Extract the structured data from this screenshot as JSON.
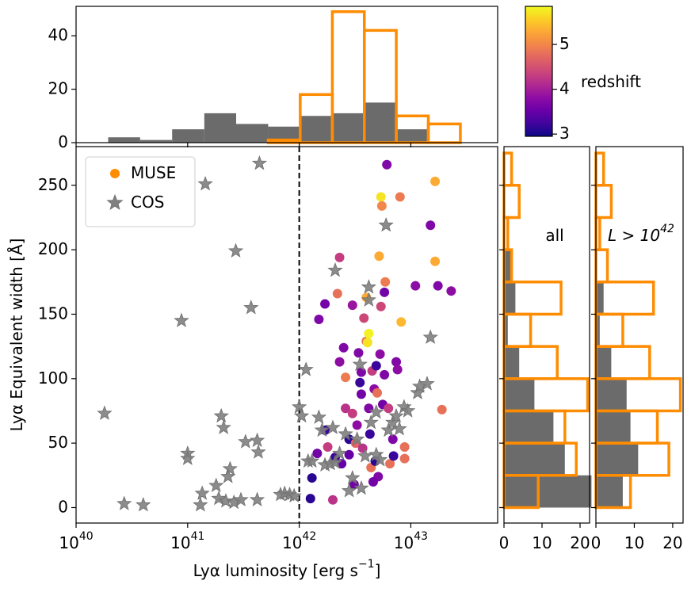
{
  "chart_data": [
    {
      "type": "scatter",
      "xlabel": "Lyα luminosity [erg s^{−1}]",
      "ylabel": "Lyα Equivalent width [Å]",
      "xscale": "log",
      "xlim": [
        1e+40,
        6e+43
      ],
      "ylim": [
        -12,
        280
      ],
      "xticks": [
        {
          "value": 1e+40,
          "label": "10^{40}"
        },
        {
          "value": 1e+41,
          "label": "10^{41}"
        },
        {
          "value": 1e+42,
          "label": "10^{42}"
        },
        {
          "value": 1e+43,
          "label": "10^{43}"
        }
      ],
      "yticks": [
        0,
        50,
        100,
        150,
        200,
        250
      ],
      "vline": {
        "x": 1e+42,
        "color": "#000000",
        "style": "dashed"
      },
      "legend": "upper left",
      "series": [
        {
          "name": "MUSE",
          "marker": "circle",
          "color": "#ff8c00",
          "x": [
            1.26e+42,
            1.3e+42,
            1.45e+42,
            1.5e+42,
            1.7e+42,
            1.7e+42,
            1.8e+42,
            2e+42,
            2.1e+42,
            2.2e+42,
            2.3e+42,
            2.5e+42,
            2.3e+42,
            2.6e+42,
            2.6e+42,
            2.8e+42,
            2.8e+42,
            3e+42,
            3e+42,
            3.1e+42,
            3.2e+42,
            3.3e+42,
            3.4e+42,
            3.5e+42,
            3.6e+42,
            3.6e+42,
            3.7e+42,
            3.8e+42,
            4e+42,
            4e+42,
            4.1e+42,
            4.2e+42,
            4.2e+42,
            4.3e+42,
            4.4e+42,
            4.5e+42,
            4.7e+42,
            4.8e+42,
            4.9e+42,
            5e+42,
            5.1e+42,
            5.3e+42,
            5.4e+42,
            5.6e+42,
            5.8e+42,
            5.4e+42,
            5.5e+42,
            5.2e+42,
            5.9e+42,
            5.8e+42,
            6.3e+42,
            6.5e+42,
            6.9e+42,
            6.1e+42,
            7.4e+42,
            7.6e+42,
            8e+42,
            8.2e+42,
            8.8e+42,
            8.8e+42,
            1.1e+43,
            1.5e+43,
            1.65e+43,
            1.65e+43,
            1.75e+43,
            1.9e+43,
            2.3e+43,
            7e+42,
            4.6e+42,
            2.4e+42
          ],
          "y": [
            7,
            23,
            42,
            146,
            158,
            60,
            47,
            6,
            39,
            166,
            194,
            124,
            113,
            77,
            101,
            53,
            41,
            157,
            73,
            18,
            50,
            64,
            120,
            97,
            88,
            105,
            46,
            147,
            129,
            163,
            128,
            135,
            77,
            57,
            31,
            106,
            92,
            36,
            110,
            89,
            24,
            119,
            156,
            80,
            103,
            241,
            234,
            195,
            175,
            167,
            77,
            34,
            53,
            266,
            113,
            107,
            241,
            144,
            47,
            38,
            172,
            219,
            253,
            191,
            172,
            76,
            168,
            40,
            20,
            34
          ],
          "z": [
            3.1,
            3.1,
            3.6,
            3.7,
            3.6,
            3.2,
            4.3,
            4.2,
            3.2,
            4.8,
            4.3,
            3.7,
            3.8,
            4.2,
            4.9,
            3.1,
            3.5,
            3.9,
            4.3,
            3.6,
            4.7,
            3.8,
            3.7,
            3.2,
            3.6,
            3.7,
            4.2,
            4.4,
            4.8,
            5.3,
            5.7,
            5.8,
            3.7,
            3.2,
            4.8,
            4.3,
            3.8,
            3.1,
            3.2,
            4.8,
            3.7,
            3.8,
            4.4,
            3.6,
            3.7,
            5.7,
            5.0,
            5.3,
            4.9,
            3.6,
            4.3,
            4.8,
            3.7,
            3.7,
            3.7,
            3.8,
            4.9,
            5.4,
            4.8,
            4.8,
            3.8,
            3.7,
            5.3,
            5.3,
            3.7,
            4.8,
            3.8,
            3.2,
            3.6,
            3.5
          ]
        },
        {
          "name": "COS",
          "marker": "star",
          "color": "#808080",
          "x": [
            2.7e+40,
            1.8e+40,
            4e+40,
            8.8e+40,
            1e+41,
            1e+41,
            1.44e+41,
            1.3e+41,
            1.35e+41,
            1.8e+41,
            2e+41,
            2.1e+41,
            1.9e+41,
            2.4e+41,
            2.3e+41,
            2.7e+41,
            2.2e+41,
            2.6e+41,
            3e+41,
            3.3e+41,
            3.7e+41,
            4.2e+41,
            4.3e+41,
            4.4e+41,
            4.2e+41,
            6.8e+41,
            7.4e+41,
            8.2e+41,
            9e+41,
            1e+42,
            1.05e+42,
            1.15e+42,
            1.2e+42,
            1.3e+42,
            1.5e+42,
            1.6e+42,
            1.7e+42,
            1.9e+42,
            2.1e+42,
            2e+42,
            2.1e+42,
            2.3e+42,
            2.6e+42,
            3e+42,
            2.8e+42,
            3.3e+42,
            3.5e+42,
            3.9e+42,
            4.2e+42,
            4.2e+42,
            4.4e+42,
            4.9e+42,
            4.9e+42,
            5.3e+42,
            6e+42,
            6.3e+42,
            6.9e+42,
            7.4e+42,
            7.9e+42,
            8.7e+42,
            9.4e+42,
            1.15e+43,
            1.2e+43,
            1.4e+43,
            1.5e+43,
            3.6e+42
          ],
          "y": [
            3,
            73,
            2,
            145,
            42,
            38,
            251,
            2,
            11,
            17,
            71,
            62,
            7,
            30,
            24,
            199,
            5,
            4,
            6,
            51,
            155,
            52,
            43,
            267,
            6,
            10,
            11,
            10,
            9,
            78,
            71,
            107,
            36,
            36,
            70,
            60,
            33,
            34,
            35,
            62,
            184,
            42,
            57,
            23,
            13,
            53,
            111,
            40,
            171,
            161,
            66,
            74,
            41,
            37,
            219,
            60,
            66,
            71,
            61,
            78,
            75,
            89,
            94,
            96,
            132,
            15
          ]
        }
      ],
      "colorbar": {
        "label": "redshift",
        "colormap": "plasma",
        "lim": [
          2.95,
          5.85
        ],
        "ticks": [
          3,
          4,
          5
        ]
      }
    },
    {
      "type": "histogram",
      "orientation": "vertical",
      "xscale": "log",
      "xlim": [
        1e+40,
        6e+43
      ],
      "ylim": [
        0,
        51
      ],
      "yticks": [
        0,
        20,
        40
      ],
      "bins": [
        1e+40,
        1.94e+40,
        3.75e+40,
        7.26e+40,
        1.41e+41,
        2.72e+41,
        5.27e+41,
        1.02e+42,
        1.98e+42,
        3.83e+42,
        7.41e+42,
        1.435e+43,
        2.78e+43
      ],
      "series": [
        {
          "style": "filled",
          "color": "#6b6b6b",
          "values": [
            0,
            2,
            1,
            5,
            11,
            7,
            6,
            10,
            11,
            15,
            5,
            0
          ]
        },
        {
          "style": "step",
          "color": "#ff8c00",
          "values": [
            0,
            0,
            0,
            0,
            0,
            0,
            1,
            18,
            49,
            42,
            10,
            7
          ]
        }
      ]
    },
    {
      "type": "histogram",
      "orientation": "horizontal",
      "annotation": "all",
      "xlim": [
        0,
        22.5
      ],
      "xticks": [
        0,
        10,
        20
      ],
      "ylim": [
        -12,
        280
      ],
      "bins": [
        0,
        25,
        50,
        75,
        100,
        125,
        150,
        175,
        200,
        225,
        250,
        275
      ],
      "series": [
        {
          "style": "filled",
          "color": "#6b6b6b",
          "values": [
            23,
            16,
            13,
            8,
            4,
            1,
            3,
            2,
            0,
            0,
            0
          ]
        },
        {
          "style": "step",
          "color": "#ff8c00",
          "values": [
            9,
            19,
            16,
            22,
            14,
            7,
            15,
            2,
            1,
            4,
            2
          ]
        }
      ]
    },
    {
      "type": "histogram",
      "orientation": "horizontal",
      "annotation": "L > 10^{42}",
      "xlim": [
        0,
        22.7
      ],
      "xticks": [
        0,
        10,
        20
      ],
      "ylim": [
        -12,
        280
      ],
      "bins": [
        0,
        25,
        50,
        75,
        100,
        125,
        150,
        175,
        200,
        225,
        250,
        275
      ],
      "series": [
        {
          "style": "filled",
          "color": "#6b6b6b",
          "values": [
            7,
            11,
            9,
            8,
            4,
            1,
            2,
            0,
            0,
            0,
            0
          ]
        },
        {
          "style": "step",
          "color": "#ff8c00",
          "values": [
            9,
            19,
            16,
            22,
            14,
            7,
            15,
            3,
            1,
            4,
            2
          ]
        }
      ]
    }
  ]
}
